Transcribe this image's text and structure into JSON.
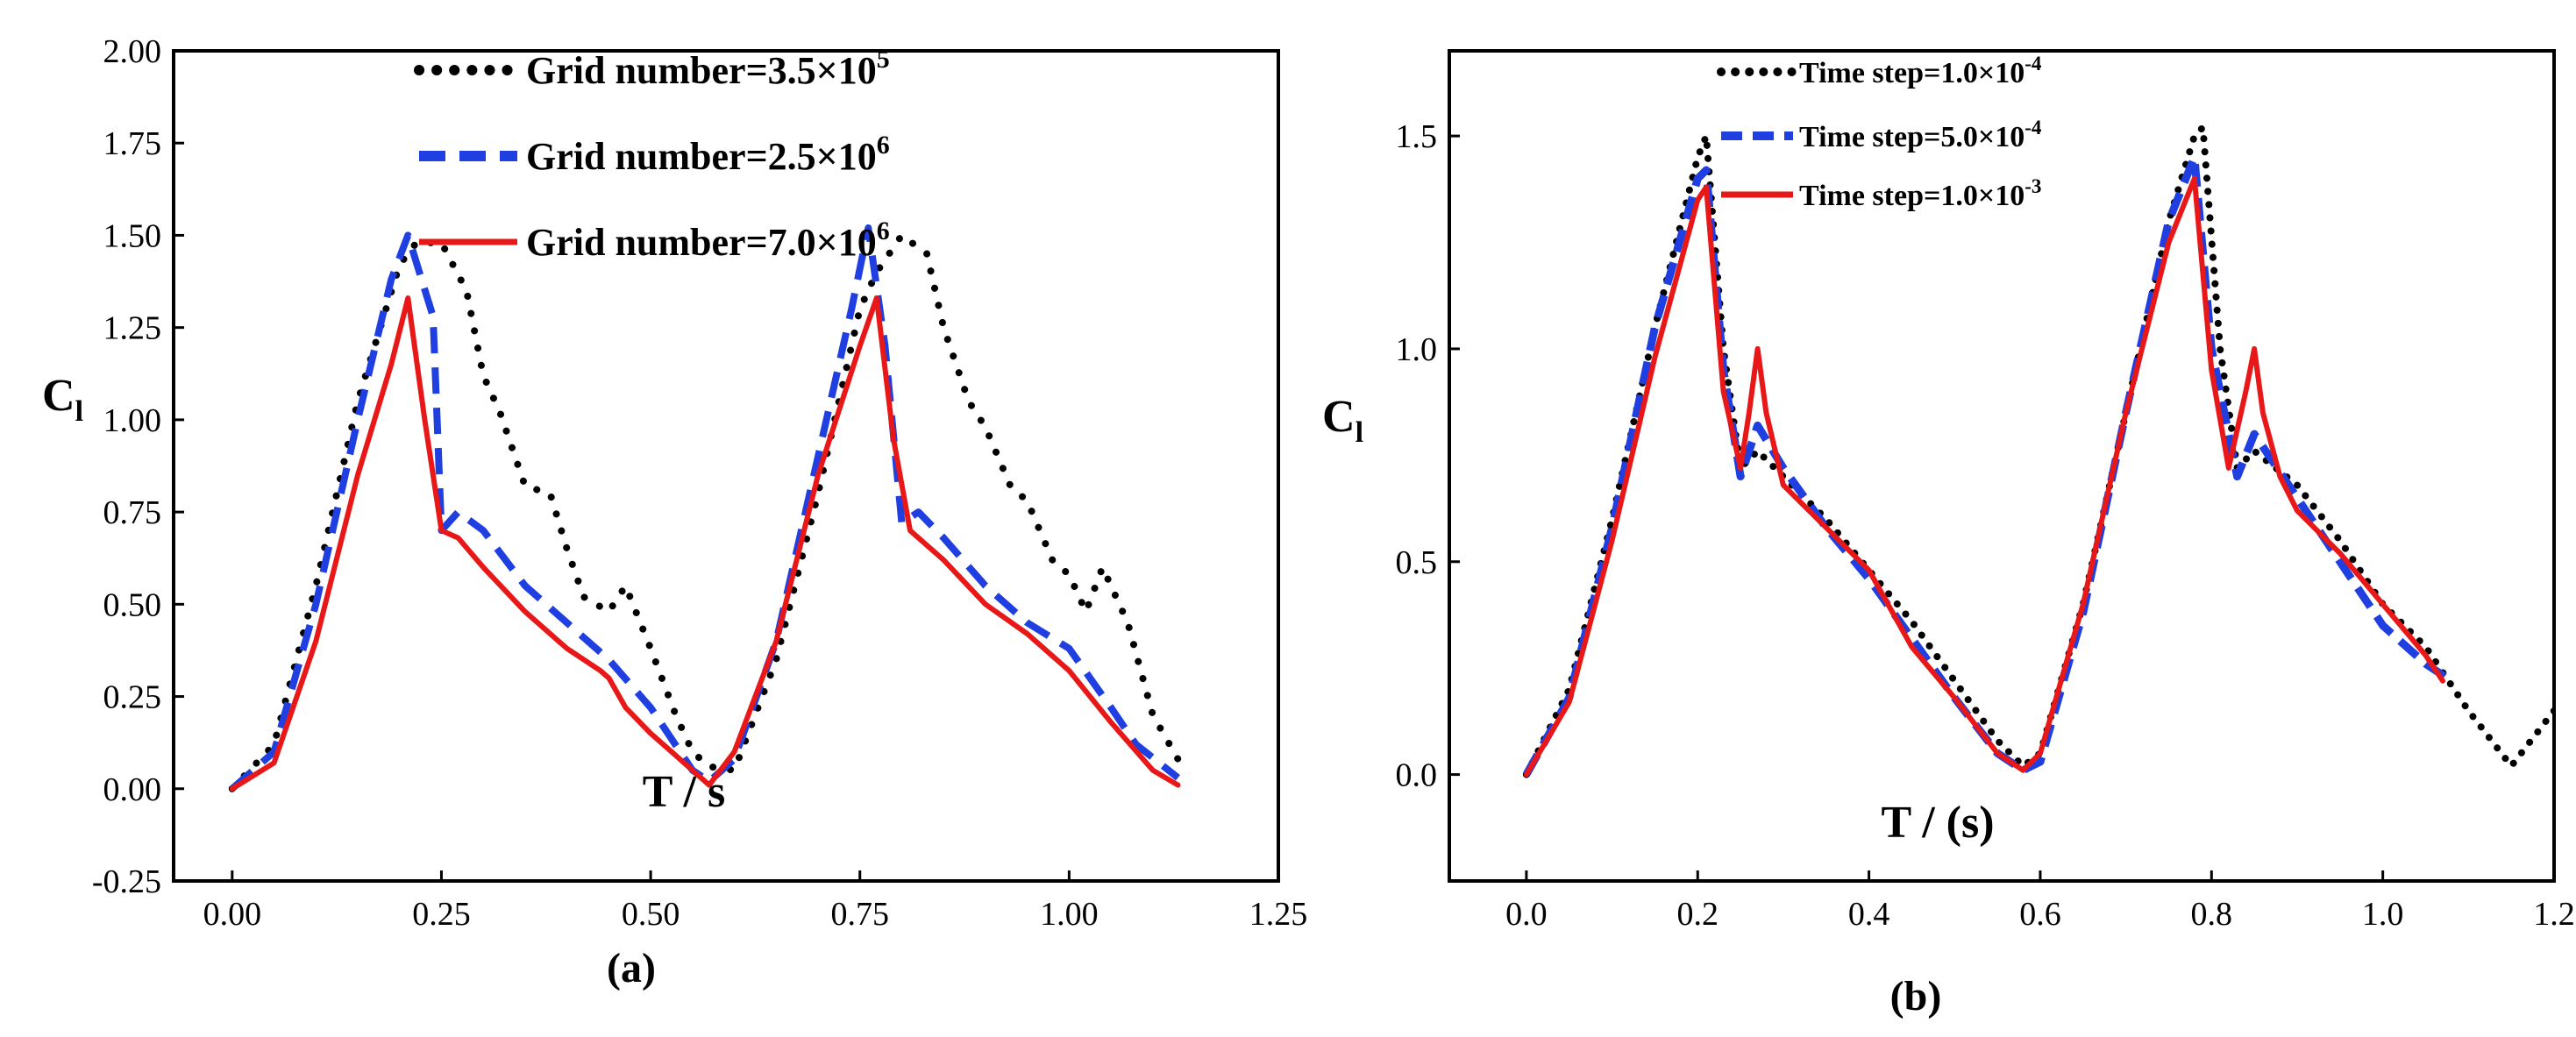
{
  "chart_data": [
    {
      "type": "line",
      "panel_label": "(a)",
      "xlabel": "T / s",
      "ylabel": "C",
      "ylabel_sub": "l",
      "xlim": [
        -0.07,
        1.25
      ],
      "ylim": [
        -0.25,
        2.0
      ],
      "xticks": [
        0.0,
        0.25,
        0.5,
        0.75,
        1.0,
        1.25
      ],
      "xtick_labels": [
        "0.00",
        "0.25",
        "0.50",
        "0.75",
        "1.00",
        "1.25"
      ],
      "yticks": [
        -0.25,
        0.0,
        0.25,
        0.5,
        0.75,
        1.0,
        1.25,
        1.5,
        1.75,
        2.0
      ],
      "ytick_labels": [
        "-0.25",
        "0.00",
        "0.25",
        "0.50",
        "0.75",
        "1.00",
        "1.25",
        "1.50",
        "1.75",
        "2.00"
      ],
      "legend_position": "top-center",
      "series": [
        {
          "name": "Grid number=3.5×10",
          "name_sup": "5",
          "style": "dotted",
          "color": "#000000",
          "x": [
            0.0,
            0.05,
            0.1,
            0.15,
            0.2,
            0.22,
            0.25,
            0.28,
            0.3,
            0.32,
            0.35,
            0.38,
            0.4,
            0.42,
            0.45,
            0.47,
            0.5,
            0.53,
            0.55,
            0.57,
            0.6,
            0.65,
            0.7,
            0.75,
            0.77,
            0.8,
            0.83,
            0.85,
            0.88,
            0.9,
            0.93,
            0.95,
            0.98,
            1.0,
            1.02,
            1.04,
            1.07,
            1.1,
            1.13
          ],
          "y": [
            0.0,
            0.12,
            0.55,
            1.05,
            1.42,
            1.48,
            1.48,
            1.35,
            1.12,
            1.02,
            0.82,
            0.8,
            0.65,
            0.52,
            0.48,
            0.55,
            0.38,
            0.2,
            0.1,
            0.06,
            0.05,
            0.35,
            0.8,
            1.3,
            1.4,
            1.5,
            1.45,
            1.25,
            1.05,
            0.98,
            0.82,
            0.78,
            0.62,
            0.58,
            0.48,
            0.6,
            0.45,
            0.2,
            0.08
          ]
        },
        {
          "name": "Grid number=2.5×10",
          "name_sup": "6",
          "style": "dashed",
          "color": "#1f3fe0",
          "x": [
            0.0,
            0.05,
            0.1,
            0.15,
            0.19,
            0.21,
            0.24,
            0.25,
            0.27,
            0.3,
            0.35,
            0.4,
            0.45,
            0.5,
            0.55,
            0.57,
            0.6,
            0.65,
            0.7,
            0.74,
            0.76,
            0.78,
            0.8,
            0.82,
            0.85,
            0.9,
            0.95,
            1.0,
            1.05,
            1.08,
            1.13
          ],
          "y": [
            0.0,
            0.1,
            0.5,
            1.0,
            1.38,
            1.5,
            1.28,
            0.7,
            0.75,
            0.7,
            0.55,
            0.45,
            0.35,
            0.22,
            0.05,
            0.02,
            0.08,
            0.4,
            0.9,
            1.3,
            1.52,
            1.2,
            0.72,
            0.75,
            0.68,
            0.55,
            0.45,
            0.38,
            0.22,
            0.12,
            0.03
          ]
        },
        {
          "name": "Grid number=7.0×10",
          "name_sup": "6",
          "style": "solid",
          "color": "#e81818",
          "x": [
            0.0,
            0.05,
            0.1,
            0.15,
            0.19,
            0.21,
            0.23,
            0.25,
            0.27,
            0.3,
            0.35,
            0.4,
            0.44,
            0.45,
            0.47,
            0.5,
            0.55,
            0.57,
            0.6,
            0.65,
            0.7,
            0.75,
            0.77,
            0.79,
            0.81,
            0.85,
            0.9,
            0.95,
            1.0,
            1.05,
            1.1,
            1.13
          ],
          "y": [
            0.0,
            0.07,
            0.4,
            0.85,
            1.15,
            1.33,
            1.0,
            0.7,
            0.68,
            0.6,
            0.48,
            0.38,
            0.32,
            0.3,
            0.22,
            0.15,
            0.05,
            0.01,
            0.1,
            0.4,
            0.85,
            1.2,
            1.33,
            0.95,
            0.7,
            0.62,
            0.5,
            0.42,
            0.32,
            0.18,
            0.05,
            0.01
          ]
        }
      ]
    },
    {
      "type": "line",
      "panel_label": "(b)",
      "xlabel": "T / (s)",
      "ylabel": "C",
      "ylabel_sub": "l",
      "xlim": [
        -0.09,
        1.2
      ],
      "ylim": [
        -0.25,
        1.7
      ],
      "xticks": [
        0.0,
        0.2,
        0.4,
        0.6,
        0.8,
        1.0,
        1.2
      ],
      "xtick_labels": [
        "0.0",
        "0.2",
        "0.4",
        "0.6",
        "0.8",
        "1.0",
        "1.2"
      ],
      "yticks": [
        0.0,
        0.5,
        1.0,
        1.5
      ],
      "ytick_labels": [
        "0.0",
        "0.5",
        "1.0",
        "1.5"
      ],
      "legend_position": "top-left",
      "series": [
        {
          "name": "Time step=1.0×10",
          "name_sup": "-4",
          "style": "dotted",
          "color": "#000000",
          "x": [
            0.0,
            0.05,
            0.1,
            0.15,
            0.2,
            0.21,
            0.23,
            0.25,
            0.27,
            0.3,
            0.35,
            0.4,
            0.45,
            0.5,
            0.55,
            0.58,
            0.6,
            0.65,
            0.7,
            0.75,
            0.78,
            0.79,
            0.81,
            0.83,
            0.85,
            0.9,
            0.95,
            1.0,
            1.05,
            1.1,
            1.15,
            1.2
          ],
          "y": [
            0.0,
            0.2,
            0.6,
            1.05,
            1.45,
            1.5,
            1.0,
            0.72,
            0.76,
            0.7,
            0.6,
            0.48,
            0.36,
            0.22,
            0.08,
            0.02,
            0.05,
            0.4,
            0.85,
            1.3,
            1.5,
            1.52,
            1.0,
            0.72,
            0.76,
            0.68,
            0.55,
            0.4,
            0.3,
            0.15,
            0.02,
            0.15
          ]
        },
        {
          "name": "Time step=5.0×10",
          "name_sup": "-4",
          "style": "dashed",
          "color": "#1f3fe0",
          "x": [
            0.0,
            0.05,
            0.1,
            0.15,
            0.2,
            0.21,
            0.23,
            0.25,
            0.27,
            0.3,
            0.35,
            0.4,
            0.45,
            0.5,
            0.55,
            0.58,
            0.6,
            0.65,
            0.7,
            0.75,
            0.78,
            0.8,
            0.83,
            0.85,
            0.9,
            0.95,
            1.0,
            1.05,
            1.08
          ],
          "y": [
            0.0,
            0.18,
            0.58,
            1.05,
            1.4,
            1.42,
            0.95,
            0.7,
            0.82,
            0.72,
            0.58,
            0.46,
            0.32,
            0.18,
            0.05,
            0.01,
            0.03,
            0.38,
            0.85,
            1.3,
            1.45,
            1.0,
            0.7,
            0.8,
            0.65,
            0.5,
            0.35,
            0.26,
            0.22
          ]
        },
        {
          "name": "Time step=1.0×10",
          "name_sup": "-3",
          "style": "solid",
          "color": "#e81818",
          "x": [
            0.0,
            0.05,
            0.1,
            0.15,
            0.2,
            0.21,
            0.23,
            0.25,
            0.26,
            0.27,
            0.28,
            0.3,
            0.35,
            0.4,
            0.45,
            0.5,
            0.55,
            0.58,
            0.6,
            0.65,
            0.7,
            0.75,
            0.78,
            0.8,
            0.82,
            0.84,
            0.85,
            0.86,
            0.88,
            0.9,
            0.95,
            1.0,
            1.05,
            1.07
          ],
          "y": [
            0.0,
            0.17,
            0.55,
            0.98,
            1.35,
            1.38,
            0.9,
            0.72,
            0.85,
            1.0,
            0.85,
            0.68,
            0.58,
            0.48,
            0.3,
            0.18,
            0.05,
            0.01,
            0.05,
            0.4,
            0.85,
            1.25,
            1.4,
            0.95,
            0.72,
            0.9,
            1.0,
            0.85,
            0.7,
            0.62,
            0.52,
            0.4,
            0.28,
            0.22
          ]
        }
      ]
    }
  ]
}
